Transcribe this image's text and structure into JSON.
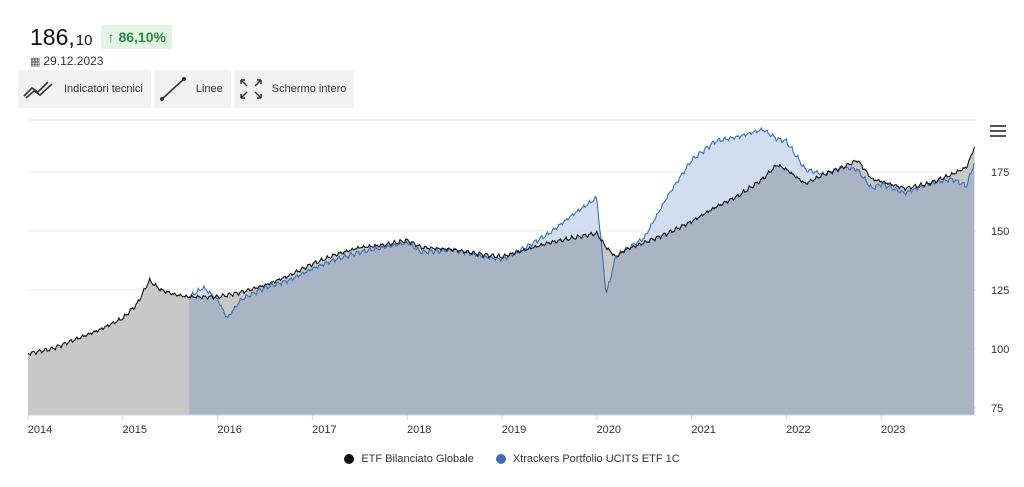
{
  "header": {
    "price_int": "186,",
    "price_dec": "10",
    "change": "86,10%",
    "date": "29.12.2023"
  },
  "toolbar": {
    "indicators_label": "Indicatori tecnici",
    "lines_label": "Linee",
    "fullscreen_label": "Schermo intero"
  },
  "colors": {
    "series1_line": "#111111",
    "series1_fill": "#c8c8c8",
    "series2_line": "#3a6fb5",
    "series2_fill": "#c9d8ee",
    "overlap_fill": "#a9b4c4",
    "gridline": "#e6e6e6",
    "badge_text": "#2b8a3e"
  },
  "chart_data": {
    "type": "area",
    "title": "",
    "xlabel": "",
    "ylabel": "",
    "ylim": [
      72,
      197
    ],
    "y_ticks": [
      75,
      100,
      125,
      150,
      175
    ],
    "x_ticks": [
      "2014",
      "2015",
      "2016",
      "2017",
      "2018",
      "2019",
      "2020",
      "2021",
      "2022",
      "2023"
    ],
    "grid": true,
    "legend_position": "bottom",
    "series": [
      {
        "name": "ETF Bilanciato Globale",
        "color": "#111111",
        "x": [
          2014.0,
          2014.25,
          2014.5,
          2014.75,
          2015.0,
          2015.15,
          2015.28,
          2015.4,
          2015.55,
          2015.7,
          2015.85,
          2016.0,
          2016.25,
          2016.5,
          2016.75,
          2017.0,
          2017.25,
          2017.5,
          2017.75,
          2018.0,
          2018.15,
          2018.5,
          2018.8,
          2019.0,
          2019.25,
          2019.5,
          2019.75,
          2020.0,
          2020.1,
          2020.2,
          2020.3,
          2020.5,
          2020.75,
          2021.0,
          2021.25,
          2021.5,
          2021.75,
          2021.9,
          2022.0,
          2022.2,
          2022.4,
          2022.6,
          2022.75,
          2022.9,
          2023.0,
          2023.25,
          2023.5,
          2023.75,
          2023.9,
          2023.99
        ],
        "y": [
          98,
          100,
          104,
          108,
          113,
          119,
          129,
          125,
          123,
          122,
          122,
          122,
          124,
          127,
          131,
          136,
          140,
          143,
          144,
          146,
          143,
          142,
          140,
          139,
          142,
          145,
          147,
          149,
          143,
          139,
          142,
          145,
          149,
          154,
          160,
          165,
          172,
          178,
          176,
          170,
          174,
          177,
          180,
          172,
          171,
          168,
          170,
          174,
          177,
          186
        ]
      },
      {
        "name": "Xtrackers Portfolio UCITS ETF 1C",
        "color": "#3a6fb5",
        "x": [
          2015.7,
          2015.85,
          2016.0,
          2016.1,
          2016.25,
          2016.5,
          2016.75,
          2017.0,
          2017.25,
          2017.5,
          2017.75,
          2018.0,
          2018.15,
          2018.5,
          2018.8,
          2019.0,
          2019.25,
          2019.5,
          2019.75,
          2020.0,
          2020.1,
          2020.2,
          2020.3,
          2020.5,
          2020.75,
          2021.0,
          2021.25,
          2021.5,
          2021.75,
          2021.9,
          2022.0,
          2022.2,
          2022.4,
          2022.6,
          2022.75,
          2022.9,
          2023.0,
          2023.25,
          2023.5,
          2023.75,
          2023.9,
          2023.99
        ],
        "y": [
          122,
          126,
          121,
          113,
          121,
          126,
          129,
          134,
          138,
          141,
          143,
          145,
          141,
          142,
          139,
          138,
          143,
          149,
          157,
          164,
          123,
          139,
          142,
          147,
          165,
          180,
          188,
          190,
          193,
          189,
          188,
          176,
          174,
          177,
          176,
          168,
          170,
          166,
          170,
          172,
          169,
          180
        ]
      }
    ]
  }
}
